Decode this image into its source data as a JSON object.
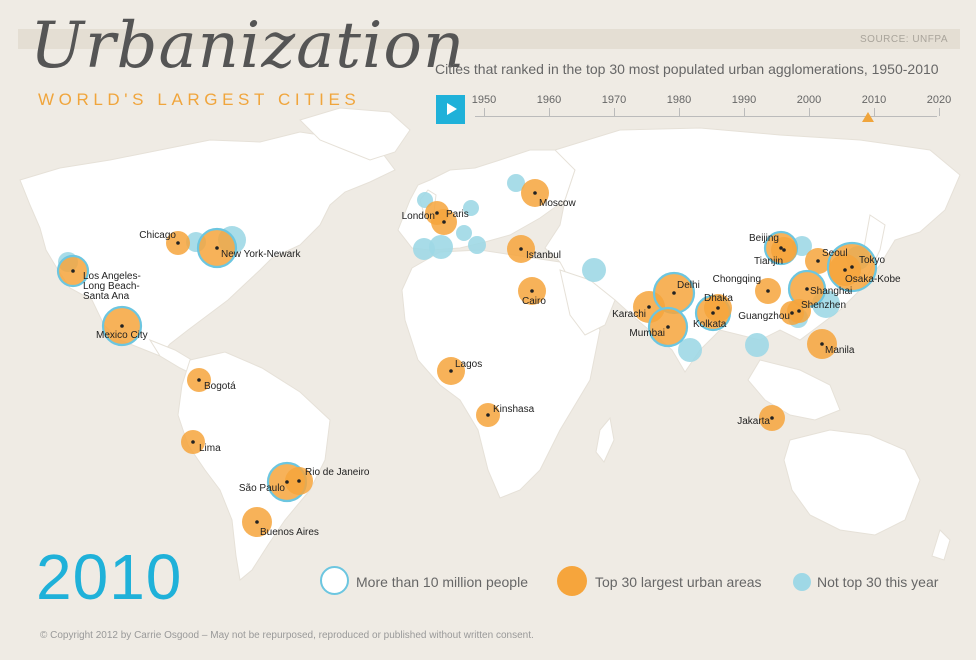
{
  "header": {
    "source": "SOURCE: UNFPA",
    "title": "Urbanization",
    "subtitle": "WORLD'S LARGEST CITIES",
    "caption": "Cities that ranked in the top 30 most populated urban agglomerations, 1950-2010"
  },
  "timeline": {
    "years": [
      "1950",
      "1960",
      "1970",
      "1980",
      "1990",
      "2000",
      "2010",
      "2020"
    ],
    "selected_year": "2010"
  },
  "year_display": "2010",
  "legend": {
    "more_than_10m": "More than 10 million people",
    "top30": "Top 30 largest urban areas",
    "not_top30": "Not top 30 this year"
  },
  "copyright": "© Copyright 2012 by Carrie Osgood – May not be repurposed, reproduced or published without written consent.",
  "colors": {
    "top30": "#f6a53c",
    "not_top30": "#9fd8e6",
    "ring": "#6cc6e0",
    "accent": "#1fb1d9",
    "land": "#ffffff",
    "ocean": "#efebe4"
  },
  "cities": [
    {
      "name": "Chicago"
    },
    {
      "name": "New York-Newark"
    },
    {
      "name": "Los Angeles-\nLong Beach-\nSanta Ana"
    },
    {
      "name": "Mexico City"
    },
    {
      "name": "Bogotá"
    },
    {
      "name": "Lima"
    },
    {
      "name": "São Paulo"
    },
    {
      "name": "Rio de Janeiro"
    },
    {
      "name": "Buenos Aires"
    },
    {
      "name": "London"
    },
    {
      "name": "Paris"
    },
    {
      "name": "Moscow"
    },
    {
      "name": "Istanbul"
    },
    {
      "name": "Cairo"
    },
    {
      "name": "Lagos"
    },
    {
      "name": "Kinshasa"
    },
    {
      "name": "Karachi"
    },
    {
      "name": "Delhi"
    },
    {
      "name": "Mumbai"
    },
    {
      "name": "Kolkata"
    },
    {
      "name": "Dhaka"
    },
    {
      "name": "Beijing"
    },
    {
      "name": "Tianjin"
    },
    {
      "name": "Seoul"
    },
    {
      "name": "Tokyo"
    },
    {
      "name": "Osaka-Kobe"
    },
    {
      "name": "Chongqing"
    },
    {
      "name": "Shanghai"
    },
    {
      "name": "Guangzhou"
    },
    {
      "name": "Shenzhen"
    },
    {
      "name": "Manila"
    },
    {
      "name": "Jakarta"
    }
  ]
}
